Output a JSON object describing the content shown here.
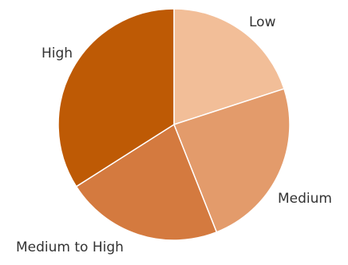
{
  "chart_data": {
    "type": "pie",
    "title": "",
    "categories": [
      "Low",
      "Medium",
      "Medium to High",
      "High"
    ],
    "values": [
      20,
      24,
      22,
      34
    ],
    "colors": [
      "#f2be98",
      "#e39b6b",
      "#d47a3f",
      "#be5a05"
    ],
    "start_angle_deg": 0,
    "direction": "clockwise",
    "slice_border_color": "#ffffff",
    "legend": "none"
  }
}
